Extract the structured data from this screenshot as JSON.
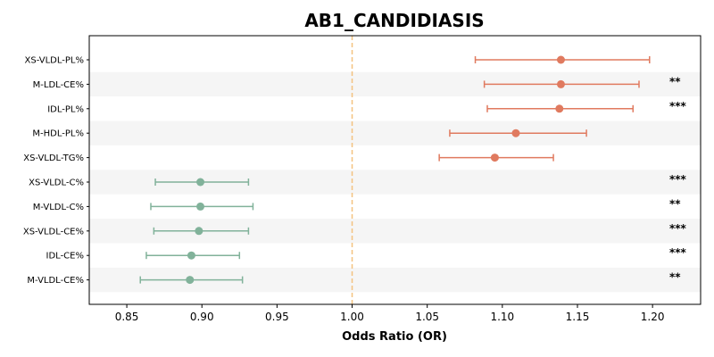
{
  "chart_data": {
    "type": "forest",
    "title": "AB1_CANDIDIASIS",
    "xlabel": "Odds Ratio (OR)",
    "xlim": [
      0.825,
      1.232
    ],
    "xticks": [
      "0.85",
      "0.90",
      "0.95",
      "1.00",
      "1.05",
      "1.10",
      "1.15",
      "1.20"
    ],
    "reference_line": 1.0,
    "colors": {
      "positive": "#E07A5F",
      "negative": "#81B29A",
      "reference": "#F4C27F",
      "band": "#F5F5F5"
    },
    "rows": [
      {
        "label": "XS-VLDL-PL%",
        "or": 1.139,
        "lo": 1.082,
        "hi": 1.198,
        "sig": ""
      },
      {
        "label": "M-LDL-CE%",
        "or": 1.139,
        "lo": 1.088,
        "hi": 1.191,
        "sig": "**"
      },
      {
        "label": "IDL-PL%",
        "or": 1.138,
        "lo": 1.09,
        "hi": 1.187,
        "sig": "***"
      },
      {
        "label": "M-HDL-PL%",
        "or": 1.109,
        "lo": 1.065,
        "hi": 1.156,
        "sig": ""
      },
      {
        "label": "XS-VLDL-TG%",
        "or": 1.095,
        "lo": 1.058,
        "hi": 1.134,
        "sig": ""
      },
      {
        "label": "XS-VLDL-C%",
        "or": 0.899,
        "lo": 0.869,
        "hi": 0.931,
        "sig": "***"
      },
      {
        "label": "M-VLDL-C%",
        "or": 0.899,
        "lo": 0.866,
        "hi": 0.934,
        "sig": "**"
      },
      {
        "label": "XS-VLDL-CE%",
        "or": 0.898,
        "lo": 0.868,
        "hi": 0.931,
        "sig": "***"
      },
      {
        "label": "IDL-CE%",
        "or": 0.893,
        "lo": 0.863,
        "hi": 0.925,
        "sig": "***"
      },
      {
        "label": "M-VLDL-CE%",
        "or": 0.892,
        "lo": 0.859,
        "hi": 0.927,
        "sig": "**"
      }
    ]
  }
}
